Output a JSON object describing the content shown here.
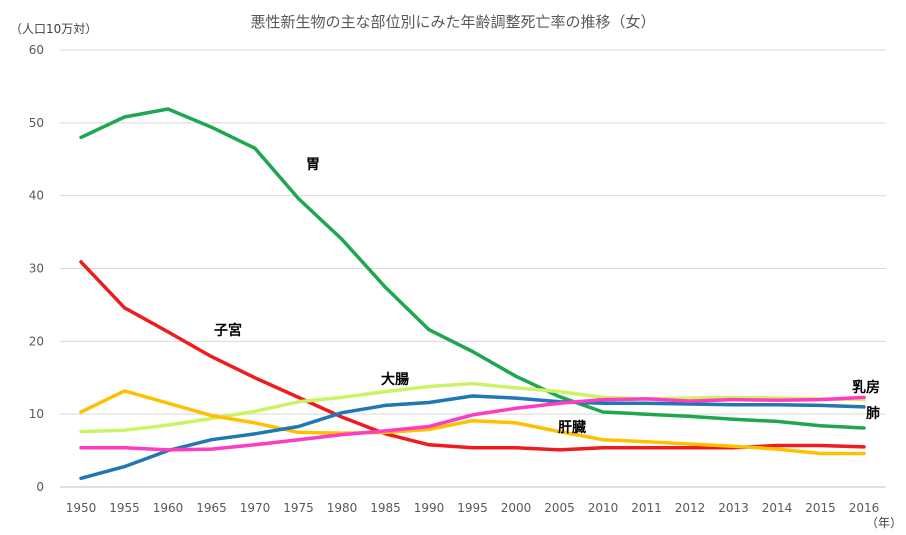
{
  "chart_data": {
    "type": "line",
    "title": "悪性新生物の主な部位別にみた年齢調整死亡率の推移（女）",
    "ylabel": "（人口10万対）",
    "xlabel": "（年）",
    "ylim": [
      0,
      60
    ],
    "yticks": [
      0,
      10,
      20,
      30,
      40,
      50,
      60
    ],
    "grid": true,
    "legend": "inline labels",
    "categories": [
      "1950",
      "1955",
      "1960",
      "1965",
      "1970",
      "1975",
      "1980",
      "1985",
      "1990",
      "1995",
      "2000",
      "2005",
      "2010",
      "2011",
      "2012",
      "2013",
      "2014",
      "2015",
      "2016"
    ],
    "series": [
      {
        "name": "胃",
        "color": "#1fa74f",
        "values": [
          48.0,
          50.8,
          51.9,
          49.4,
          46.5,
          39.6,
          34.0,
          27.4,
          21.6,
          18.6,
          15.2,
          12.4,
          10.3,
          10.0,
          9.7,
          9.3,
          9.0,
          8.4,
          8.1
        ]
      },
      {
        "name": "子宮",
        "color": "#ee1c1c",
        "values": [
          30.9,
          24.6,
          21.3,
          17.9,
          15.0,
          12.3,
          9.6,
          7.3,
          5.8,
          5.4,
          5.4,
          5.1,
          5.4,
          5.4,
          5.4,
          5.4,
          5.7,
          5.7,
          5.5
        ]
      },
      {
        "name": "大腸",
        "color": "#ccf266",
        "values": [
          7.6,
          7.8,
          8.5,
          9.4,
          10.4,
          11.7,
          12.3,
          13.1,
          13.8,
          14.2,
          13.6,
          13.1,
          12.3,
          12.1,
          12.2,
          12.3,
          12.2,
          12.1,
          12.0
        ]
      },
      {
        "name": "肝臓",
        "color": "#ffc000",
        "values": [
          10.3,
          13.2,
          11.5,
          9.8,
          8.8,
          7.5,
          7.4,
          7.5,
          7.9,
          9.1,
          8.8,
          7.6,
          6.5,
          6.2,
          5.9,
          5.6,
          5.2,
          4.6,
          4.6
        ]
      },
      {
        "name": "肺",
        "color": "#1f77b4",
        "values": [
          1.2,
          2.8,
          5.0,
          6.5,
          7.3,
          8.3,
          10.2,
          11.2,
          11.6,
          12.5,
          12.2,
          11.7,
          11.5,
          11.5,
          11.4,
          11.3,
          11.3,
          11.2,
          11.0
        ]
      },
      {
        "name": "乳房",
        "color": "#ff3bbf",
        "values": [
          5.4,
          5.4,
          5.1,
          5.2,
          5.8,
          6.5,
          7.2,
          7.7,
          8.3,
          9.9,
          10.8,
          11.5,
          12.0,
          12.1,
          11.8,
          12.0,
          11.9,
          12.0,
          12.3
        ]
      }
    ]
  }
}
